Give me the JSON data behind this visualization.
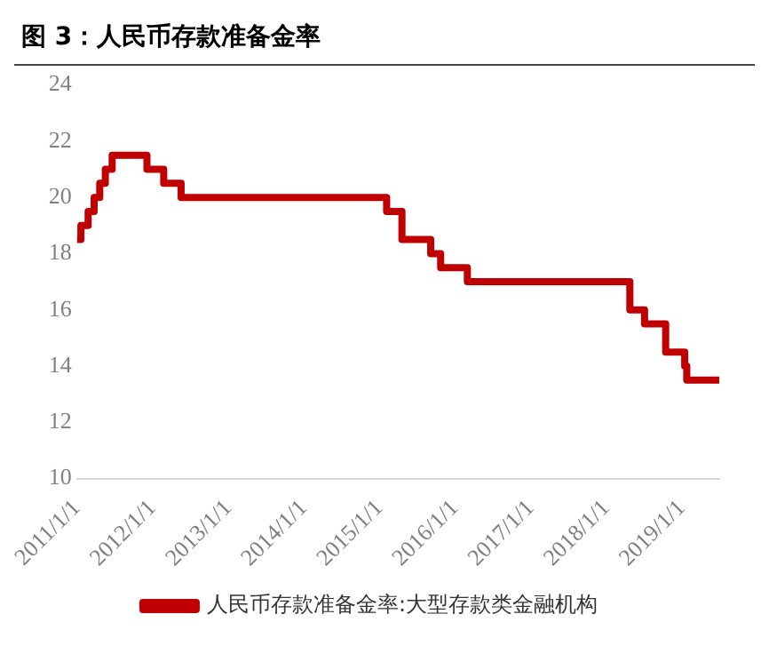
{
  "chart_data": {
    "type": "step",
    "title": "图 3：人民币存款准备金率",
    "x": [
      "2011-01-01",
      "2011-01-20",
      "2011-02-24",
      "2011-03-25",
      "2011-04-21",
      "2011-05-18",
      "2011-06-20",
      "2011-12-05",
      "2012-02-24",
      "2012-05-18",
      "2015-02-05",
      "2015-04-20",
      "2015-09-06",
      "2015-10-24",
      "2016-03-01",
      "2018-04-25",
      "2018-07-05",
      "2018-10-15",
      "2019-01-15",
      "2019-01-25",
      "2019-07-01"
    ],
    "series": [
      {
        "name": "人民币存款准备金率:大型存款类金融机构",
        "color": "#c00000",
        "values": [
          18.5,
          19,
          19.5,
          20,
          20.5,
          21,
          21.5,
          21,
          20.5,
          20,
          19.5,
          18.5,
          18,
          17.5,
          17,
          16,
          15.5,
          14.5,
          14,
          13.5,
          13.5
        ]
      }
    ],
    "xlim": [
      "2011-01-01",
      "2019-07-01"
    ],
    "xticks": [
      {
        "value": "2011-01-01",
        "label": "2011/1/1"
      },
      {
        "value": "2012-01-01",
        "label": "2012/1/1"
      },
      {
        "value": "2013-01-01",
        "label": "2013/1/1"
      },
      {
        "value": "2014-01-01",
        "label": "2014/1/1"
      },
      {
        "value": "2015-01-01",
        "label": "2015/1/1"
      },
      {
        "value": "2016-01-01",
        "label": "2016/1/1"
      },
      {
        "value": "2017-01-01",
        "label": "2017/1/1"
      },
      {
        "value": "2018-01-01",
        "label": "2018/1/1"
      },
      {
        "value": "2019-01-01",
        "label": "2019/1/1"
      }
    ],
    "ylim": [
      10,
      24
    ],
    "yticks": [
      10,
      12,
      14,
      16,
      18,
      20,
      22,
      24
    ],
    "grid": false,
    "legend": "bottom",
    "marker": "none",
    "line_style": "solid"
  }
}
